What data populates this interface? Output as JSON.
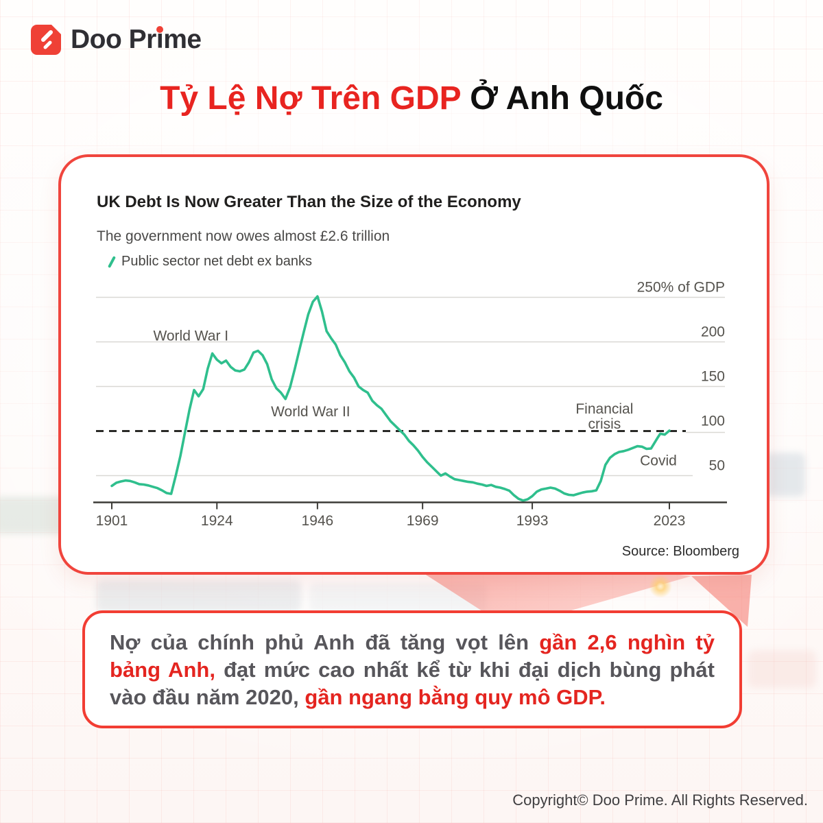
{
  "brand": {
    "name": "Doo Prime",
    "name_parts": [
      "Doo Pr",
      "i",
      "me"
    ],
    "logo_color": "#ef4136"
  },
  "header": {
    "title_red": "Tỷ Lệ Nợ Trên GDP",
    "title_black": " Ở Anh Quốc"
  },
  "chart": {
    "title": "UK Debt Is Now Greater Than the Size of the Economy",
    "subtitle": "The government now owes almost £2.6 trillion",
    "legend_label": "Public sector net debt ex banks",
    "source": "Source: Bloomberg"
  },
  "chart_data": {
    "type": "line",
    "title": "UK Debt Is Now Greater Than the Size of the Economy",
    "subtitle": "The government now owes almost £2.6 trillion",
    "unit": "% of GDP",
    "xlim": [
      1901,
      2035
    ],
    "ylim": [
      20,
      265
    ],
    "grid": "horizontal",
    "legend_position": "top-left",
    "gridlines": [
      250,
      200,
      150,
      50
    ],
    "threshold": {
      "value": 100,
      "style": "dashed",
      "color": "#2a2a27"
    },
    "ytick_labels": [
      {
        "value": 250,
        "label": "250% of GDP"
      },
      {
        "value": 200,
        "label": "200"
      },
      {
        "value": 150,
        "label": "150"
      },
      {
        "value": 100,
        "label": "100"
      },
      {
        "value": 50,
        "label": "50"
      }
    ],
    "xticks": [
      1901,
      1924,
      1946,
      1969,
      1993,
      2023
    ],
    "annotations": [
      {
        "label": "World War I",
        "year": 1918.3,
        "value": 207
      },
      {
        "label": "World War II",
        "year": 1944.5,
        "value": 122
      },
      {
        "label": "Financial\ncrisis",
        "year": 2008.8,
        "value": 125
      },
      {
        "label": "Covid",
        "year": 2020.6,
        "value": 67
      }
    ],
    "series": [
      {
        "name": "Public sector net debt ex banks",
        "color": "#2fbf8d",
        "points": [
          [
            1901,
            38.5
          ],
          [
            1902,
            42
          ],
          [
            1903,
            43.5
          ],
          [
            1904,
            44.5
          ],
          [
            1905,
            44
          ],
          [
            1906,
            42.5
          ],
          [
            1907,
            40.5
          ],
          [
            1908,
            40
          ],
          [
            1909,
            39
          ],
          [
            1910,
            37.5
          ],
          [
            1911,
            36
          ],
          [
            1912,
            33.5
          ],
          [
            1913,
            30.5
          ],
          [
            1914,
            29.5
          ],
          [
            1915,
            50
          ],
          [
            1916,
            72
          ],
          [
            1917,
            98
          ],
          [
            1918,
            124
          ],
          [
            1919,
            146
          ],
          [
            1920,
            139
          ],
          [
            1921,
            147
          ],
          [
            1922,
            170
          ],
          [
            1923,
            187
          ],
          [
            1924,
            180
          ],
          [
            1925,
            176
          ],
          [
            1926,
            179
          ],
          [
            1927,
            172
          ],
          [
            1928,
            168
          ],
          [
            1929,
            167
          ],
          [
            1930,
            169
          ],
          [
            1931,
            177
          ],
          [
            1932,
            188
          ],
          [
            1933,
            190
          ],
          [
            1934,
            185
          ],
          [
            1935,
            175
          ],
          [
            1936,
            158
          ],
          [
            1937,
            148
          ],
          [
            1938,
            143
          ],
          [
            1939,
            136
          ],
          [
            1940,
            149
          ],
          [
            1941,
            169
          ],
          [
            1942,
            190
          ],
          [
            1943,
            211
          ],
          [
            1944,
            231
          ],
          [
            1945,
            245
          ],
          [
            1946,
            251
          ],
          [
            1947,
            234
          ],
          [
            1948,
            212
          ],
          [
            1949,
            204
          ],
          [
            1950,
            197
          ],
          [
            1951,
            185
          ],
          [
            1952,
            177
          ],
          [
            1953,
            167
          ],
          [
            1954,
            160
          ],
          [
            1955,
            150
          ],
          [
            1956,
            146
          ],
          [
            1957,
            143
          ],
          [
            1958,
            134
          ],
          [
            1959,
            129
          ],
          [
            1960,
            125
          ],
          [
            1961,
            118
          ],
          [
            1962,
            111
          ],
          [
            1963,
            106
          ],
          [
            1964,
            101
          ],
          [
            1965,
            96
          ],
          [
            1966,
            89
          ],
          [
            1967,
            84
          ],
          [
            1968,
            78
          ],
          [
            1969,
            71
          ],
          [
            1970,
            65
          ],
          [
            1971,
            60
          ],
          [
            1972,
            55
          ],
          [
            1973,
            50
          ],
          [
            1974,
            52.5
          ],
          [
            1975,
            49
          ],
          [
            1976,
            46
          ],
          [
            1977,
            45
          ],
          [
            1978,
            44
          ],
          [
            1979,
            43
          ],
          [
            1980,
            42.5
          ],
          [
            1981,
            41
          ],
          [
            1982,
            40
          ],
          [
            1983,
            38.5
          ],
          [
            1984,
            39.5
          ],
          [
            1985,
            37.5
          ],
          [
            1986,
            36.5
          ],
          [
            1987,
            35
          ],
          [
            1988,
            33
          ],
          [
            1989,
            28
          ],
          [
            1990,
            24
          ],
          [
            1991,
            22
          ],
          [
            1992,
            23.5
          ],
          [
            1993,
            27
          ],
          [
            1994,
            32
          ],
          [
            1995,
            34.5
          ],
          [
            1996,
            35.5
          ],
          [
            1997,
            36.5
          ],
          [
            1998,
            35.5
          ],
          [
            1999,
            33
          ],
          [
            2000,
            30
          ],
          [
            2001,
            28.5
          ],
          [
            2002,
            28
          ],
          [
            2003,
            29.5
          ],
          [
            2004,
            31
          ],
          [
            2005,
            32
          ],
          [
            2006,
            32.5
          ],
          [
            2007,
            33.5
          ],
          [
            2008,
            44
          ],
          [
            2009,
            62
          ],
          [
            2010,
            70
          ],
          [
            2011,
            74
          ],
          [
            2012,
            76.5
          ],
          [
            2013,
            77.5
          ],
          [
            2014,
            79
          ],
          [
            2015,
            81
          ],
          [
            2016,
            83
          ],
          [
            2017,
            82.5
          ],
          [
            2018,
            80
          ],
          [
            2019,
            80.5
          ],
          [
            2020.5,
            93
          ],
          [
            2021,
            97
          ],
          [
            2022,
            96
          ],
          [
            2023,
            100.5
          ]
        ]
      }
    ]
  },
  "summary": {
    "segments": [
      {
        "text": "Nợ của chính phủ Anh đã tăng vọt lên ",
        "em": false
      },
      {
        "text": "gần 2,6 nghìn tỷ bảng Anh,",
        "em": true
      },
      {
        "text": " đạt mức cao nhất kể từ khi đại dịch bùng phát vào đầu năm 2020, ",
        "em": false
      },
      {
        "text": "gần ngang bằng quy mô GDP.",
        "em": true
      }
    ]
  },
  "footer": {
    "copyright": "Copyright© Doo Prime. All Rights Reserved."
  },
  "colors": {
    "accent_red": "#ee3a31",
    "title_red": "#e82420",
    "card_border": "#f0453d",
    "line_green": "#2fbf8d",
    "grid_gray": "#d9d8d4",
    "axis_dark": "#3c3b37",
    "label_gray": "#55534e",
    "summary_dark": "#57565b",
    "summary_red": "#e42520"
  }
}
